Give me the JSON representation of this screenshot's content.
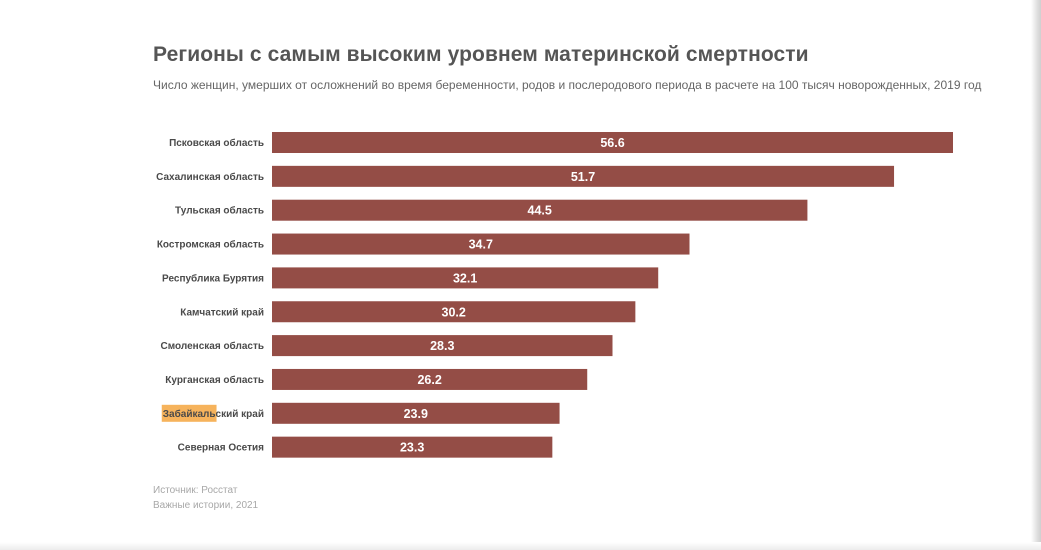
{
  "chart_data": {
    "type": "bar",
    "orientation": "horizontal",
    "title": "Регионы с самым высоким уровнем материнской смертности",
    "subtitle": "Число женщин, умерших от осложнений во время беременности, родов и послеродового периода в расчете на 100 тысяч новорожденных, 2019 год",
    "categories": [
      "Псковская область",
      "Сахалинская область",
      "Тульская область",
      "Костромская область",
      "Республика Бурятия",
      "Камчатский край",
      "Смоленская область",
      "Курганская область",
      "Забайкальский край",
      "Северная Осетия"
    ],
    "values": [
      56.6,
      51.7,
      44.5,
      34.7,
      32.1,
      30.2,
      28.3,
      26.2,
      23.9,
      23.3
    ],
    "xlim": [
      0,
      56.6
    ],
    "grid": false,
    "legend": "none",
    "bar_color": "#944d46",
    "value_label_color": "#ffffff",
    "highlight": {
      "category_index": 8,
      "text": "Забайкаль",
      "color": "#f6b35c"
    }
  },
  "footer": {
    "source": "Источник: Росстат",
    "credit": "Важные истории, 2021"
  }
}
